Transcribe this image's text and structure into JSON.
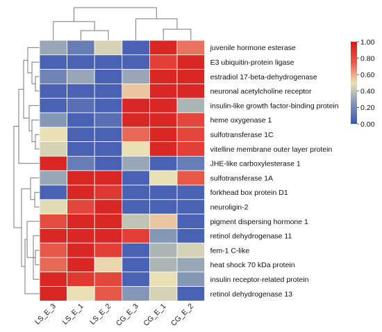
{
  "chart_data": {
    "type": "heatmap",
    "title": "",
    "columns": [
      "LS_E_3",
      "LS_E_1",
      "LS_E_2",
      "CG_E_3",
      "CG_E_1",
      "CG_E_2"
    ],
    "rows": [
      "juvenile hormone esterase",
      "E3 ubiquitin-protein ligase",
      "estradiol 17-beta-dehydrogenase",
      "neuronal acetylcholine receptor",
      "insulin-like growth factor-binding protein",
      "heme oxygenase 1",
      "sulfotransferase 1C",
      "vitelline membrane outer layer protein",
      "JHE-like carboxylesterase 1",
      "sulfotransferase 1A",
      "forkhead box protein D1",
      "neuroligin-2",
      "pigment dispersing hormone 1",
      "retinol dehydrogenase 11",
      "fem-1 C-like",
      "heat shock 70 kDa protein",
      "insulin receptor-related protein",
      "retinol dehydrogenase 13"
    ],
    "values": [
      [
        0.3,
        0.15,
        0.45,
        0.05,
        0.95,
        0.7
      ],
      [
        0.05,
        0.05,
        0.05,
        0.05,
        0.85,
        0.95
      ],
      [
        0.18,
        0.3,
        0.05,
        0.3,
        0.95,
        0.95
      ],
      [
        0.05,
        0.05,
        0.05,
        0.55,
        0.95,
        0.95
      ],
      [
        0.05,
        0.1,
        0.05,
        0.95,
        0.95,
        0.35
      ],
      [
        0.25,
        0.05,
        0.1,
        0.95,
        0.95,
        0.82
      ],
      [
        0.5,
        0.05,
        0.05,
        0.72,
        0.95,
        0.82
      ],
      [
        0.45,
        0.05,
        0.05,
        0.5,
        0.95,
        0.85
      ],
      [
        0.95,
        0.15,
        0.05,
        0.3,
        0.05,
        0.15
      ],
      [
        0.3,
        0.95,
        0.95,
        0.05,
        0.5,
        0.75
      ],
      [
        0.05,
        0.95,
        0.88,
        0.05,
        0.05,
        0.05
      ],
      [
        0.48,
        0.82,
        0.95,
        0.05,
        0.05,
        0.05
      ],
      [
        0.8,
        0.95,
        0.95,
        0.4,
        0.55,
        0.05
      ],
      [
        0.95,
        0.95,
        0.95,
        0.85,
        0.25,
        0.05
      ],
      [
        0.75,
        0.95,
        0.85,
        0.05,
        0.35,
        0.45
      ],
      [
        0.72,
        0.95,
        0.52,
        0.05,
        0.35,
        0.3
      ],
      [
        0.95,
        0.88,
        0.82,
        0.05,
        0.5,
        0.25
      ],
      [
        0.95,
        0.5,
        0.75,
        0.25,
        0.45,
        0.05
      ]
    ],
    "colorbar": {
      "min": 0.0,
      "max": 1.0,
      "ticks": [
        "1.00",
        "0.80",
        "0.60",
        "0.40",
        "0.20",
        "0.00"
      ],
      "colors": [
        "#3a55b4",
        "#8497b5",
        "#e9e1b5",
        "#e8584a",
        "#d7191c"
      ]
    },
    "xlabel": "",
    "ylabel": "",
    "grid": true,
    "column_dendrogram": "top",
    "row_dendrogram": "left"
  }
}
